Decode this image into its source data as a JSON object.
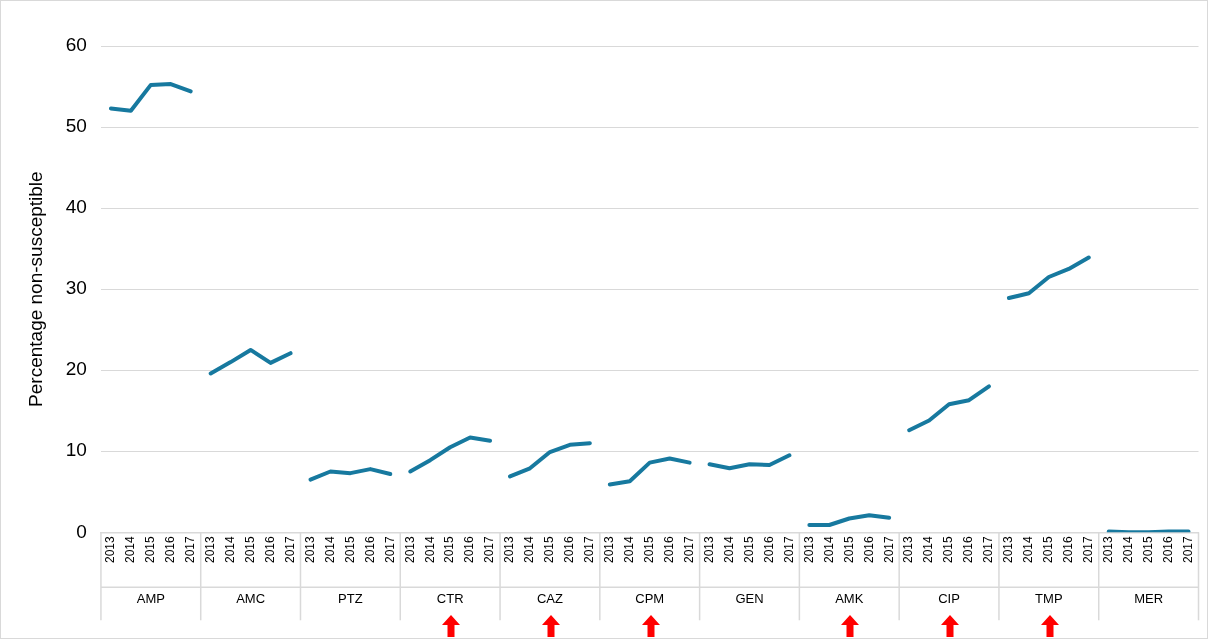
{
  "chart_data": {
    "type": "line",
    "ylabel": "Percentage non-susceptible",
    "categories": [
      "2013",
      "2014",
      "2015",
      "2016",
      "2017",
      "2013",
      "2014",
      "2015",
      "2016",
      "2017",
      "2013",
      "2014",
      "2015",
      "2016",
      "2017",
      "2013",
      "2014",
      "2015",
      "2016",
      "2017",
      "2013",
      "2014",
      "2015",
      "2016",
      "2017",
      "2013",
      "2014",
      "2015",
      "2016",
      "2017",
      "2013",
      "2014",
      "2015",
      "2016",
      "2017",
      "2013",
      "2014",
      "2015",
      "2016",
      "2017",
      "2013",
      "2014",
      "2015",
      "2016",
      "2017",
      "2013",
      "2014",
      "2015",
      "2016",
      "2017",
      "2013",
      "2014",
      "2015",
      "2016",
      "2017"
    ],
    "series": [
      {
        "color": "#17799f",
        "values": [
          52.3,
          52.0,
          55.2,
          55.3,
          54.4,
          null,
          null,
          null,
          null,
          null,
          null,
          null,
          null,
          null,
          null,
          null,
          null,
          null,
          null,
          null,
          null,
          null,
          null,
          null,
          null,
          null,
          null,
          null,
          null,
          null,
          null,
          null,
          null,
          null,
          null,
          null,
          null,
          null,
          null,
          null,
          null,
          null,
          null,
          null,
          null,
          null,
          null,
          null,
          null,
          null,
          null,
          null,
          null,
          null,
          null
        ]
      },
      {
        "color": "#17799f",
        "values": [
          null,
          null,
          null,
          null,
          null,
          19.6,
          21.0,
          22.5,
          20.9,
          22.1,
          null,
          null,
          null,
          null,
          null,
          null,
          null,
          null,
          null,
          null,
          null,
          null,
          null,
          null,
          null,
          null,
          null,
          null,
          null,
          null,
          null,
          null,
          null,
          null,
          null,
          null,
          null,
          null,
          null,
          null,
          null,
          null,
          null,
          null,
          null,
          null,
          null,
          null,
          null,
          null,
          null,
          null,
          null,
          null,
          null
        ]
      },
      {
        "color": "#17799f",
        "values": [
          null,
          null,
          null,
          null,
          null,
          null,
          null,
          null,
          null,
          null,
          6.5,
          7.5,
          7.3,
          7.8,
          7.2,
          null,
          null,
          null,
          null,
          null,
          null,
          null,
          null,
          null,
          null,
          null,
          null,
          null,
          null,
          null,
          null,
          null,
          null,
          null,
          null,
          null,
          null,
          null,
          null,
          null,
          null,
          null,
          null,
          null,
          null,
          null,
          null,
          null,
          null,
          null,
          null,
          null,
          null,
          null,
          null
        ]
      },
      {
        "color": "#17799f",
        "values": [
          null,
          null,
          null,
          null,
          null,
          null,
          null,
          null,
          null,
          null,
          null,
          null,
          null,
          null,
          null,
          7.5,
          8.9,
          10.5,
          11.7,
          11.3,
          null,
          null,
          null,
          null,
          null,
          null,
          null,
          null,
          null,
          null,
          null,
          null,
          null,
          null,
          null,
          null,
          null,
          null,
          null,
          null,
          null,
          null,
          null,
          null,
          null,
          null,
          null,
          null,
          null,
          null,
          null,
          null,
          null,
          null,
          null
        ]
      },
      {
        "color": "#17799f",
        "values": [
          null,
          null,
          null,
          null,
          null,
          null,
          null,
          null,
          null,
          null,
          null,
          null,
          null,
          null,
          null,
          null,
          null,
          null,
          null,
          null,
          6.9,
          7.9,
          9.9,
          10.8,
          11.0,
          null,
          null,
          null,
          null,
          null,
          null,
          null,
          null,
          null,
          null,
          null,
          null,
          null,
          null,
          null,
          null,
          null,
          null,
          null,
          null,
          null,
          null,
          null,
          null,
          null,
          null,
          null,
          null,
          null,
          null
        ]
      },
      {
        "color": "#17799f",
        "values": [
          null,
          null,
          null,
          null,
          null,
          null,
          null,
          null,
          null,
          null,
          null,
          null,
          null,
          null,
          null,
          null,
          null,
          null,
          null,
          null,
          null,
          null,
          null,
          null,
          null,
          5.9,
          6.3,
          8.6,
          9.1,
          8.6,
          null,
          null,
          null,
          null,
          null,
          null,
          null,
          null,
          null,
          null,
          null,
          null,
          null,
          null,
          null,
          null,
          null,
          null,
          null,
          null,
          null,
          null,
          null,
          null,
          null
        ]
      },
      {
        "color": "#17799f",
        "values": [
          null,
          null,
          null,
          null,
          null,
          null,
          null,
          null,
          null,
          null,
          null,
          null,
          null,
          null,
          null,
          null,
          null,
          null,
          null,
          null,
          null,
          null,
          null,
          null,
          null,
          null,
          null,
          null,
          null,
          null,
          8.4,
          7.9,
          8.4,
          8.3,
          9.5,
          null,
          null,
          null,
          null,
          null,
          null,
          null,
          null,
          null,
          null,
          null,
          null,
          null,
          null,
          null,
          null,
          null,
          null,
          null,
          null
        ]
      },
      {
        "color": "#17799f",
        "values": [
          null,
          null,
          null,
          null,
          null,
          null,
          null,
          null,
          null,
          null,
          null,
          null,
          null,
          null,
          null,
          null,
          null,
          null,
          null,
          null,
          null,
          null,
          null,
          null,
          null,
          null,
          null,
          null,
          null,
          null,
          null,
          null,
          null,
          null,
          null,
          0.9,
          0.9,
          1.7,
          2.1,
          1.8,
          null,
          null,
          null,
          null,
          null,
          null,
          null,
          null,
          null,
          null,
          null,
          null,
          null,
          null,
          null
        ]
      },
      {
        "color": "#17799f",
        "values": [
          null,
          null,
          null,
          null,
          null,
          null,
          null,
          null,
          null,
          null,
          null,
          null,
          null,
          null,
          null,
          null,
          null,
          null,
          null,
          null,
          null,
          null,
          null,
          null,
          null,
          null,
          null,
          null,
          null,
          null,
          null,
          null,
          null,
          null,
          null,
          null,
          null,
          null,
          null,
          null,
          12.6,
          13.8,
          15.8,
          16.3,
          18.0,
          null,
          null,
          null,
          null,
          null,
          null,
          null,
          null,
          null,
          null
        ]
      },
      {
        "color": "#17799f",
        "values": [
          null,
          null,
          null,
          null,
          null,
          null,
          null,
          null,
          null,
          null,
          null,
          null,
          null,
          null,
          null,
          null,
          null,
          null,
          null,
          null,
          null,
          null,
          null,
          null,
          null,
          null,
          null,
          null,
          null,
          null,
          null,
          null,
          null,
          null,
          null,
          null,
          null,
          null,
          null,
          null,
          null,
          null,
          null,
          null,
          null,
          28.9,
          29.5,
          31.5,
          32.5,
          33.9,
          null,
          null,
          null,
          null,
          null
        ]
      },
      {
        "color": "#17799f",
        "values": [
          null,
          null,
          null,
          null,
          null,
          null,
          null,
          null,
          null,
          null,
          null,
          null,
          null,
          null,
          null,
          null,
          null,
          null,
          null,
          null,
          null,
          null,
          null,
          null,
          null,
          null,
          null,
          null,
          null,
          null,
          null,
          null,
          null,
          null,
          null,
          null,
          null,
          null,
          null,
          null,
          null,
          null,
          null,
          null,
          null,
          null,
          null,
          null,
          null,
          null,
          0.1,
          0.0,
          0.0,
          0.1,
          0.1
        ]
      }
    ],
    "annotations": [
      "AMP",
      "AMC",
      "PTZ",
      "CTR",
      "CAZ",
      "CPM",
      "GEN",
      "AMK",
      "CIP",
      "TMP",
      "MER"
    ],
    "ylim": [
      0,
      60
    ],
    "yticks": [
      0,
      10,
      20,
      30,
      40,
      50,
      60
    ],
    "grid": "y",
    "legend": false,
    "marker": "none",
    "line_style": "solid"
  }
}
